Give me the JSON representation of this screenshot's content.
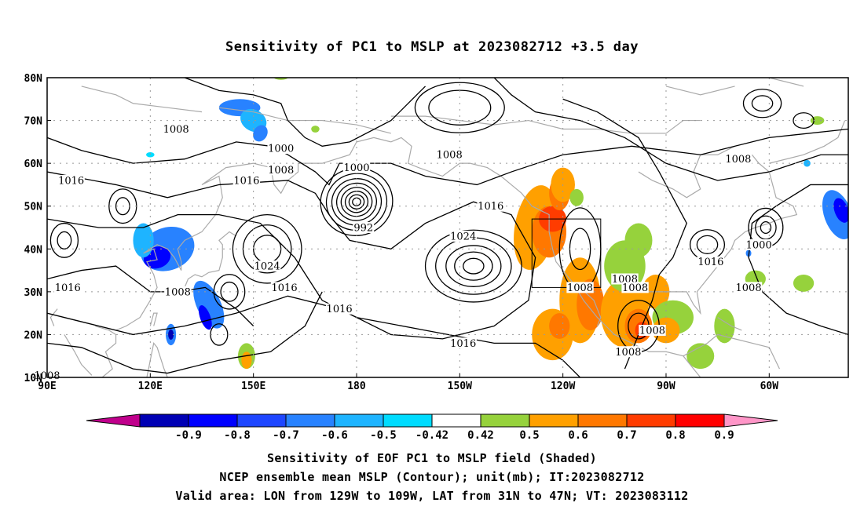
{
  "title": "Sensitivity of PC1 to MSLP at 2023082712 +3.5 day",
  "lat_labels": [
    "80N",
    "70N",
    "60N",
    "50N",
    "40N",
    "30N",
    "20N",
    "10N"
  ],
  "lon_labels": [
    "90E",
    "120E",
    "150E",
    "180",
    "150W",
    "120W",
    "90W",
    "60W"
  ],
  "contour_labels": [
    {
      "text": "1008",
      "lon": 127.5,
      "lat": 68
    },
    {
      "text": "1000",
      "lon": 158,
      "lat": 63.5
    },
    {
      "text": "1008",
      "lon": 158,
      "lat": 58.5
    },
    {
      "text": "1016",
      "lon": 97,
      "lat": 56
    },
    {
      "text": "1016",
      "lon": 148,
      "lat": 56
    },
    {
      "text": "1000",
      "lon": 180,
      "lat": 59
    },
    {
      "text": "992",
      "lon": 182,
      "lat": 45
    },
    {
      "text": "1008",
      "lon": 207,
      "lat": 62
    },
    {
      "text": "1016",
      "lon": 219,
      "lat": 50
    },
    {
      "text": "1024",
      "lon": 211,
      "lat": 43
    },
    {
      "text": "1024",
      "lon": 154,
      "lat": 36
    },
    {
      "text": "1016",
      "lon": 159,
      "lat": 31
    },
    {
      "text": "1016",
      "lon": 96,
      "lat": 31
    },
    {
      "text": "1008",
      "lon": 128,
      "lat": 30
    },
    {
      "text": "1016",
      "lon": 175,
      "lat": 26
    },
    {
      "text": "1016",
      "lon": 211,
      "lat": 18
    },
    {
      "text": "1008",
      "lon": 90,
      "lat": 10.5
    },
    {
      "text": "1008",
      "lon": 245,
      "lat": 31
    },
    {
      "text": "1008",
      "lon": 258,
      "lat": 33
    },
    {
      "text": "1008",
      "lon": 261,
      "lat": 31
    },
    {
      "text": "1008",
      "lon": 266,
      "lat": 21
    },
    {
      "text": "1008",
      "lon": 259,
      "lat": 16
    },
    {
      "text": "1016",
      "lon": 283,
      "lat": 37
    },
    {
      "text": "1000",
      "lon": 297,
      "lat": 41
    },
    {
      "text": "1008",
      "lon": 291,
      "lat": 61
    },
    {
      "text": "1008",
      "lon": 294,
      "lat": 31
    }
  ],
  "colorbar": {
    "labels": [
      "-0.9",
      "-0.8",
      "-0.7",
      "-0.6",
      "-0.5",
      "-0.42",
      "0.42",
      "0.5",
      "0.6",
      "0.7",
      "0.8",
      "0.9"
    ],
    "colors": [
      "#c0008c",
      "#0000b4",
      "#0000ff",
      "#1e46ff",
      "#2882ff",
      "#1eb4ff",
      "#00dcff",
      "#ffffff",
      "#96d23c",
      "#ffa000",
      "#ff7800",
      "#ff3c00",
      "#ff0000",
      "#ff96c8"
    ]
  },
  "captions": [
    "Sensitivity of EOF PC1 to MSLP field (Shaded)",
    "NCEP ensemble mean MSLP (Contour); unit(mb); IT:2023082712",
    "Valid area: LON from 129W to 109W, LAT from 31N to 47N; VT: 2023083112"
  ],
  "valid_box": {
    "lon_min": 231,
    "lon_max": 251,
    "lat_min": 31,
    "lat_max": 47
  },
  "colors": {
    "land": "#aaaaaa",
    "contour": "#000000",
    "grid": "#999999"
  }
}
